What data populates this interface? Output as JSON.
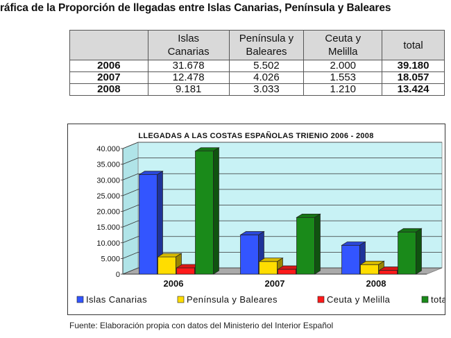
{
  "page": {
    "title": "ráfica de la Proporción de llegadas entre Islas Canarias, Península y Baleares",
    "source": "Fuente: Elaboración propia con datos del Ministerio del Interior Español"
  },
  "table": {
    "headers": [
      "",
      "Islas\nCanarias",
      "Península y\nBaleares",
      "Ceuta y\nMelilla",
      "total"
    ],
    "rows": [
      [
        "2006",
        "31.678",
        "5.502",
        "2.000",
        "39.180"
      ],
      [
        "2007",
        "12.478",
        "4.026",
        "1.553",
        "18.057"
      ],
      [
        "2008",
        "9.181",
        "3.033",
        "1.210",
        "13.424"
      ]
    ]
  },
  "chart_data": {
    "type": "bar",
    "title": "LLEGADAS A LAS COSTAS ESPAÑOLAS TRIENIO 2006 - 2008",
    "categories": [
      "2006",
      "2007",
      "2008"
    ],
    "series": [
      {
        "name": "Islas Canarias",
        "values": [
          31678,
          12478,
          9181
        ],
        "color": "#3355ff"
      },
      {
        "name": "Península y Baleares",
        "values": [
          5502,
          4026,
          3033
        ],
        "color": "#ffdd00"
      },
      {
        "name": "Ceuta y Melilla",
        "values": [
          2000,
          1553,
          1210
        ],
        "color": "#ff1a1a"
      },
      {
        "name": "total",
        "values": [
          39180,
          18057,
          13424
        ],
        "color": "#1a8a1a"
      }
    ],
    "ylim": [
      0,
      40000
    ],
    "yticks": [
      0,
      5000,
      10000,
      15000,
      20000,
      25000,
      30000,
      35000,
      40000
    ],
    "ytick_labels": [
      "0",
      "5.000",
      "10.000",
      "15.000",
      "20.000",
      "25.000",
      "30.000",
      "35.000",
      "40.000"
    ],
    "xlabel": "",
    "ylabel": "",
    "grid": true,
    "legend": "bottom",
    "plot_background": "#c8f2f5"
  }
}
